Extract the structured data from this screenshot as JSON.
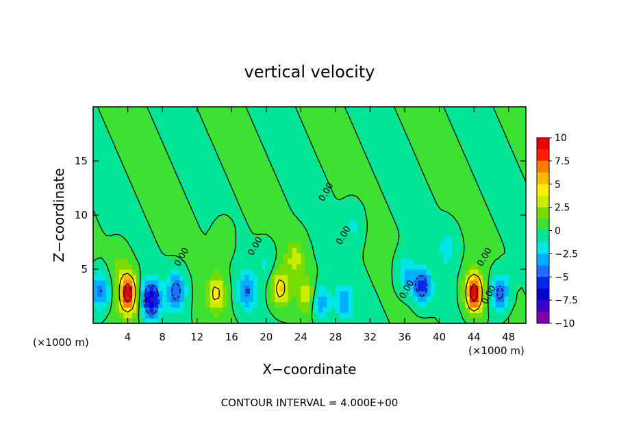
{
  "chart_data": {
    "type": "heatmap",
    "title": "vertical velocity",
    "xlabel": "X−coordinate",
    "ylabel": "Z−coordinate",
    "x_unit_left": "(×1000 m)",
    "x_unit_right": "(×1000 m)",
    "footer": "CONTOUR INTERVAL = 4.000E+00",
    "xlim": [
      0,
      50
    ],
    "ylim": [
      0,
      20
    ],
    "x_ticks": [
      "4",
      "8",
      "12",
      "16",
      "20",
      "24",
      "28",
      "32",
      "36",
      "40",
      "44",
      "48"
    ],
    "y_ticks": [
      "5",
      "10",
      "15"
    ],
    "colorbar": {
      "min": -10,
      "max": 10,
      "labels": [
        "10",
        "7.5",
        "5",
        "2.5",
        "0",
        "−2.5",
        "−5",
        "−7.5",
        "−10"
      ]
    },
    "contour_labels": [
      {
        "text": "0.00",
        "x": 10.5,
        "y": 6.0
      },
      {
        "text": "0.00",
        "x": 19.0,
        "y": 7.0
      },
      {
        "text": "0.00",
        "x": 27.2,
        "y": 12.0
      },
      {
        "text": "0.00",
        "x": 29.2,
        "y": 8.0
      },
      {
        "text": "0.00",
        "x": 36.5,
        "y": 3.0
      },
      {
        "text": "0.00",
        "x": 45.5,
        "y": 6.0
      },
      {
        "text": "0.00",
        "x": 46.0,
        "y": 2.5
      }
    ],
    "features": [
      {
        "kind": "updraft",
        "x": 4.0,
        "z": 2.8,
        "peak": 10
      },
      {
        "kind": "updraft",
        "x": 44.0,
        "z": 2.8,
        "peak": 10
      },
      {
        "kind": "updraft",
        "x": 14.2,
        "z": 2.8,
        "peak": 4.5
      },
      {
        "kind": "updraft",
        "x": 21.6,
        "z": 3.2,
        "peak": 5
      },
      {
        "kind": "updraft",
        "x": 23.3,
        "z": 6.0,
        "peak": 3
      },
      {
        "kind": "updraft",
        "x": 24.6,
        "z": 2.6,
        "peak": 3
      },
      {
        "kind": "updraft",
        "x": 3.0,
        "z": 5.5,
        "peak": 1.5
      },
      {
        "kind": "updraft",
        "x": 15.0,
        "z": 7.5,
        "peak": 1.2
      },
      {
        "kind": "downdraft",
        "x": 6.7,
        "z": 2.2,
        "peak": -7.5
      },
      {
        "kind": "downdraft",
        "x": 9.6,
        "z": 3.0,
        "peak": -5
      },
      {
        "kind": "downdraft",
        "x": 0.8,
        "z": 3.0,
        "peak": -4.5
      },
      {
        "kind": "downdraft",
        "x": 17.8,
        "z": 3.0,
        "peak": -4
      },
      {
        "kind": "downdraft",
        "x": 26.3,
        "z": 1.8,
        "peak": -3.5
      },
      {
        "kind": "downdraft",
        "x": 29.0,
        "z": 2.0,
        "peak": -3
      },
      {
        "kind": "downdraft",
        "x": 38.0,
        "z": 3.4,
        "peak": -5.5
      },
      {
        "kind": "downdraft",
        "x": 36.2,
        "z": 4.5,
        "peak": -3
      },
      {
        "kind": "downdraft",
        "x": 47.0,
        "z": 2.8,
        "peak": -5
      },
      {
        "kind": "downdraft",
        "x": 41.0,
        "z": 7.0,
        "peak": -2
      },
      {
        "kind": "downdraft",
        "x": 30.0,
        "z": 9.0,
        "peak": -1.5
      },
      {
        "kind": "downdraft",
        "x": 20.0,
        "z": 5.5,
        "peak": -1.5
      }
    ]
  }
}
